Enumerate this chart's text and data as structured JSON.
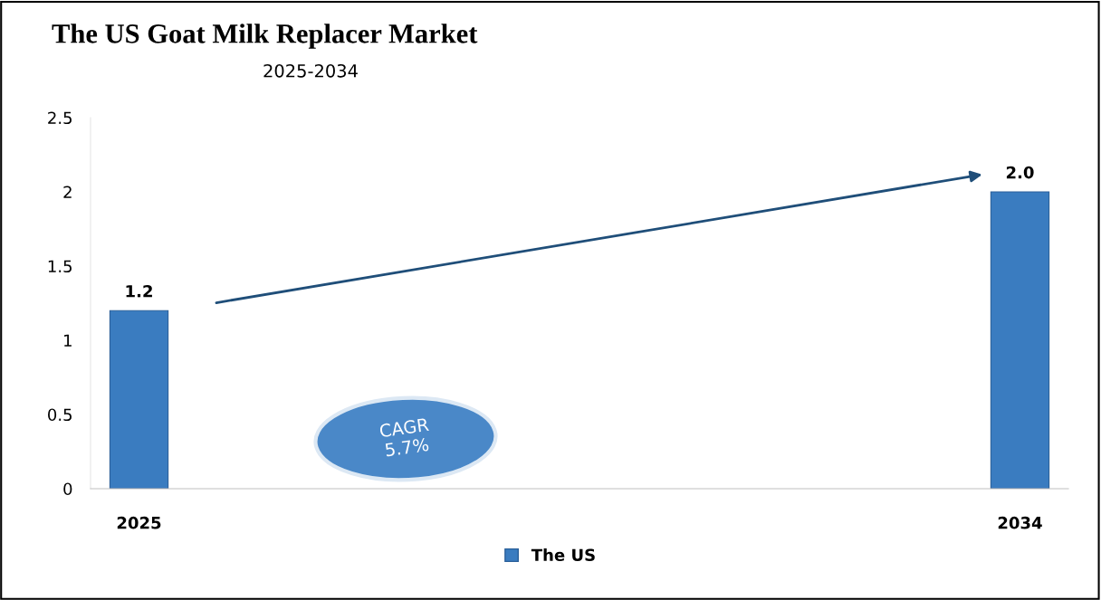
{
  "chart_data": {
    "type": "bar",
    "title": "The US Goat Milk Replacer Market",
    "subtitle": "2025-2034",
    "categories": [
      "2025",
      "2034"
    ],
    "series": [
      {
        "name": "The US",
        "color": "#3a7cc0",
        "values": [
          1.2,
          2.0
        ]
      }
    ],
    "ylim": [
      0,
      2.5
    ],
    "yticks": [
      0,
      0.5,
      1,
      1.5,
      2,
      2.5
    ],
    "value_labels": [
      "1.2",
      "2.0"
    ],
    "annotations": [
      "CAGR\n5.7%"
    ],
    "grid": false,
    "legend": "bottom"
  }
}
